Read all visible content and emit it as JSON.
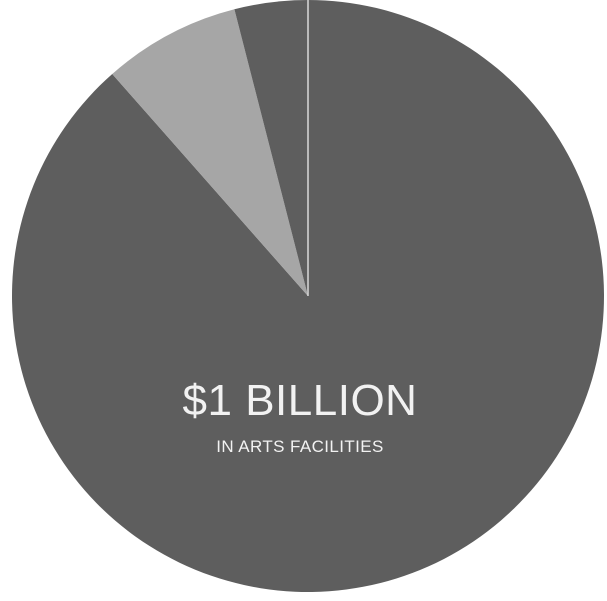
{
  "chart_data": {
    "type": "pie",
    "title": "",
    "slices": [
      {
        "label": "$1 BILLION IN ARTS FACILITIES",
        "value": 88.5,
        "color": "#5e5e5e"
      },
      {
        "label": "",
        "value": 7.5,
        "color": "#a6a6a6"
      },
      {
        "label": "",
        "value": 4.0,
        "color": "#5e5e5e"
      }
    ],
    "start_angle_deg": 0,
    "direction": "clockwise",
    "slice_separator_color": "#d9d9d9"
  },
  "labels": {
    "main": "$1 BILLION",
    "sub": "IN ARTS FACILITIES"
  }
}
